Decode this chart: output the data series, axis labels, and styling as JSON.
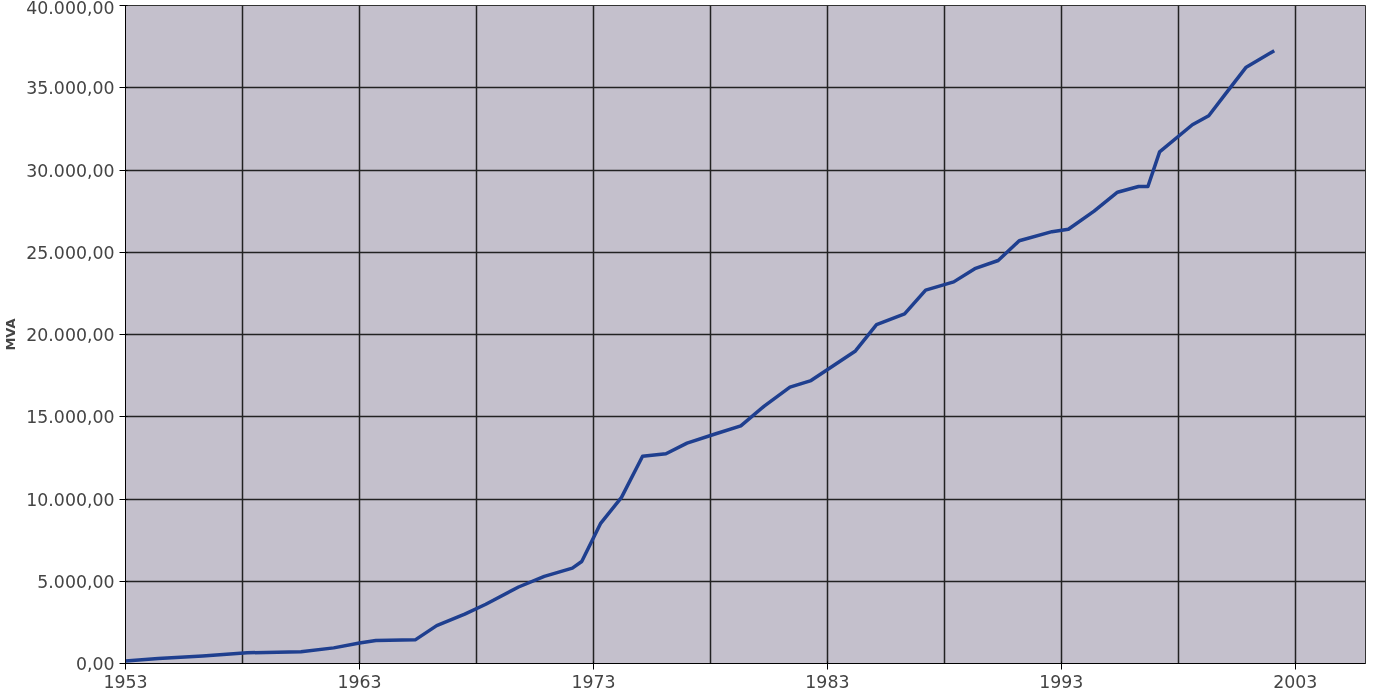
{
  "chart_data": {
    "type": "line",
    "ylabel": "MVA",
    "x": [
      1953,
      1954.4,
      1956.3,
      1958.2,
      1960.5,
      1961.9,
      1963,
      1963.7,
      1965.4,
      1966.3,
      1967.5,
      1968.4,
      1969.8,
      1970.9,
      1972.1,
      1972.5,
      1973.3,
      1974.2,
      1975.1,
      1976.1,
      1977,
      1978.2,
      1979.3,
      1980.3,
      1981.4,
      1982.3,
      1984.2,
      1985.1,
      1986.3,
      1987.2,
      1988.4,
      1989.3,
      1990.3,
      1991.2,
      1992.6,
      1993.3,
      1994.4,
      1995.4,
      1996.3,
      1996.7,
      1997.2,
      1998.6,
      1999.3,
      2000,
      2000.9,
      2002.1
    ],
    "series": [
      {
        "color": "#1f3f8f",
        "values": [
          150,
          300,
          450,
          650,
          720,
          950,
          1250,
          1400,
          1450,
          2300,
          3000,
          3600,
          4650,
          5300,
          5800,
          6200,
          8500,
          10100,
          12600,
          12750,
          13400,
          13950,
          14450,
          15650,
          16800,
          17200,
          19000,
          20600,
          21250,
          22700,
          23200,
          24000,
          24500,
          25700,
          26250,
          26400,
          27500,
          28650,
          29000,
          29000,
          31100,
          32750,
          33300,
          34600,
          36250,
          37250
        ]
      }
    ],
    "xlim": [
      1953,
      2006
    ],
    "xticks": [
      1953,
      1963,
      1973,
      1983,
      1993,
      2003
    ],
    "ylim": [
      0,
      40000
    ],
    "yticks": [
      {
        "value": 0,
        "label": "0,00"
      },
      {
        "value": 5000,
        "label": "5.000,00"
      },
      {
        "value": 10000,
        "label": "10.000,00"
      },
      {
        "value": 15000,
        "label": "15.000,00"
      },
      {
        "value": 20000,
        "label": "20.000,00"
      },
      {
        "value": 25000,
        "label": "25.000,00"
      },
      {
        "value": 30000,
        "label": "30.000,00"
      },
      {
        "value": 35000,
        "label": "35.000,00"
      },
      {
        "value": 40000,
        "label": "40.000,00"
      }
    ],
    "grid": true,
    "marker": "none",
    "line_style": "solid"
  }
}
